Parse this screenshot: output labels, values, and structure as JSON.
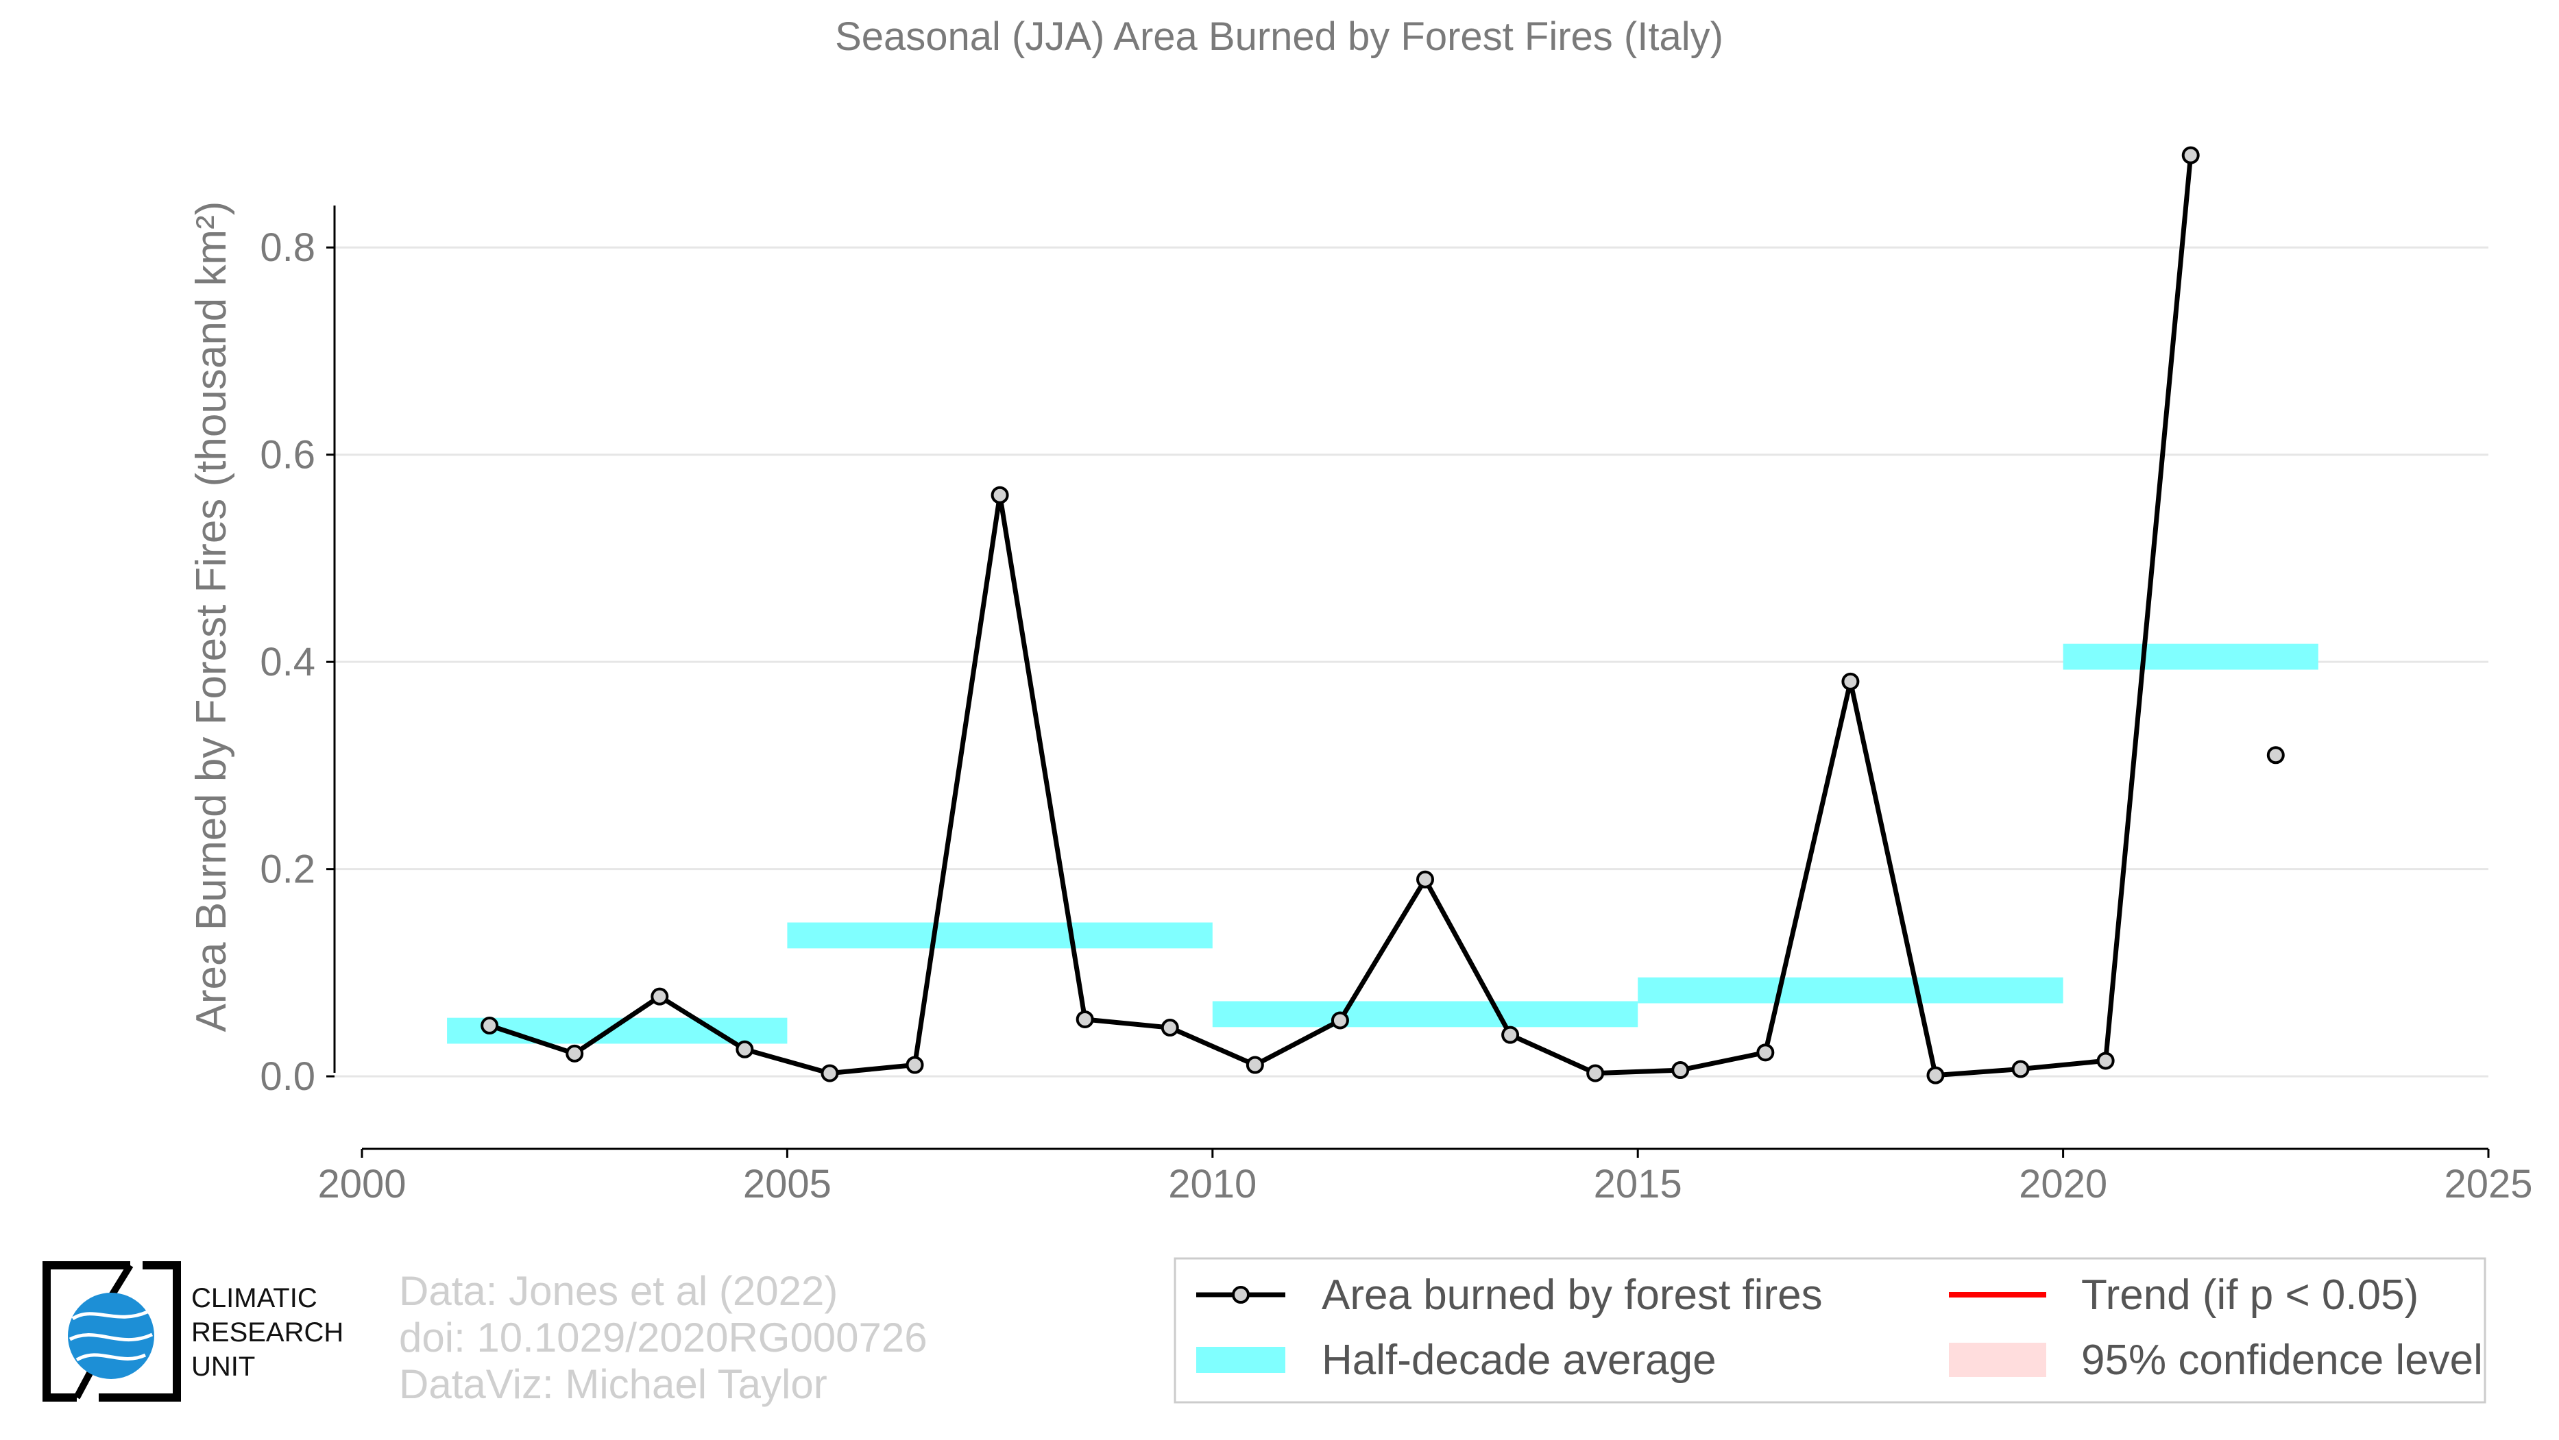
{
  "chart_data": {
    "type": "line",
    "title": "Seasonal (JJA) Area Burned by Forest Fires (Italy)",
    "xlabel": "",
    "ylabel": "Area Burned by Forest Fires (thousand km²)",
    "xlim": [
      2000,
      2025
    ],
    "ylim": [
      -0.07,
      0.9
    ],
    "x_ticks": [
      2000,
      2005,
      2010,
      2015,
      2020,
      2025
    ],
    "y_ticks": [
      0.0,
      0.2,
      0.4,
      0.6,
      0.8
    ],
    "y_tick_labels": [
      "0.0",
      "0.2",
      "0.4",
      "0.6",
      "0.8"
    ],
    "grid": "horizontal",
    "legend_placement": "bottom-right",
    "series": [
      {
        "name": "Area burned by forest fires",
        "color": "#000000",
        "marker_fill": "#d3d3d3",
        "x": [
          2001.5,
          2002.5,
          2003.5,
          2004.5,
          2005.5,
          2006.5,
          2007.5,
          2008.5,
          2009.5,
          2010.5,
          2011.5,
          2012.5,
          2013.5,
          2014.5,
          2015.5,
          2016.5,
          2017.5,
          2018.5,
          2019.5,
          2020.5,
          2021.5,
          2022.5
        ],
        "values": [
          0.049,
          0.022,
          0.077,
          0.026,
          0.003,
          0.011,
          0.561,
          0.055,
          0.047,
          0.011,
          0.054,
          0.19,
          0.04,
          0.003,
          0.006,
          0.023,
          0.381,
          0.001,
          0.007,
          0.015,
          0.889,
          0.31
        ],
        "connected_through_index": 20
      }
    ],
    "half_decade_average": {
      "name": "Half-decade average",
      "color": "#80ffff",
      "segments": [
        {
          "x_start": 2001,
          "x_end": 2005,
          "value": 0.044
        },
        {
          "x_start": 2005,
          "x_end": 2010,
          "value": 0.136
        },
        {
          "x_start": 2010,
          "x_end": 2015,
          "value": 0.06
        },
        {
          "x_start": 2015,
          "x_end": 2020,
          "value": 0.083
        },
        {
          "x_start": 2020,
          "x_end": 2023,
          "value": 0.405
        }
      ]
    },
    "legend": [
      {
        "label": "Area burned by forest fires",
        "kind": "line-marker",
        "color": "#000000"
      },
      {
        "label": "Trend (if p < 0.05)",
        "kind": "line",
        "color": "#ff0000"
      },
      {
        "label": "Half-decade average",
        "kind": "band",
        "color": "#80ffff"
      },
      {
        "label": "95% confidence level",
        "kind": "band",
        "color": "#ffdddd"
      }
    ]
  },
  "credits": {
    "line1": "Data: Jones et al (2022)",
    "line2": "doi: 10.1029/2020RG000726",
    "line3": "DataViz: Michael Taylor"
  },
  "logo": {
    "line1": "CLIMATIC",
    "line2": "RESEARCH",
    "line3": "UNIT",
    "accent_color": "#1d8fd6"
  }
}
